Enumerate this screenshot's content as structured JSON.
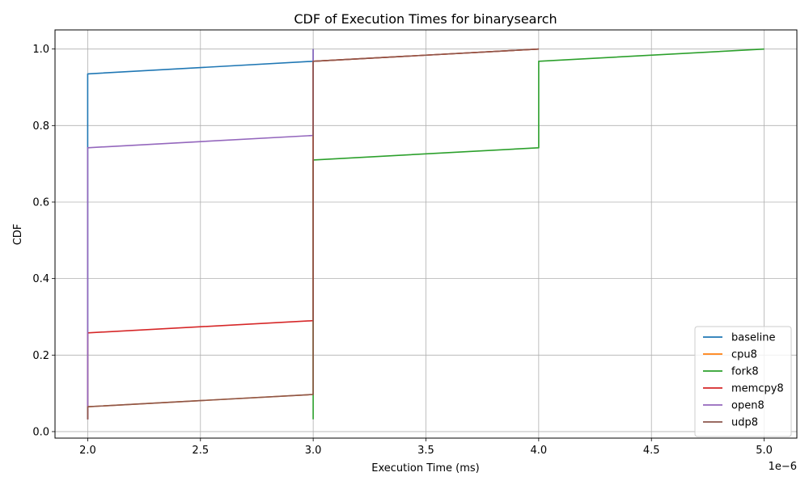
{
  "chart_data": {
    "type": "line",
    "title": "CDF of Execution Times for binarysearch",
    "xlabel": "Execution Time (ms)",
    "ylabel": "CDF",
    "x_offset_label": "1e−6",
    "xlim": [
      1.855,
      5.145
    ],
    "ylim": [
      -0.017,
      1.05
    ],
    "x_ticks": [
      2.0,
      2.5,
      3.0,
      3.5,
      4.0,
      4.5,
      5.0
    ],
    "x_tick_labels": [
      "2.0",
      "2.5",
      "3.0",
      "3.5",
      "4.0",
      "4.5",
      "5.0"
    ],
    "y_ticks": [
      0.0,
      0.2,
      0.4,
      0.6,
      0.8,
      1.0
    ],
    "y_tick_labels": [
      "0.0",
      "0.2",
      "0.4",
      "0.6",
      "0.8",
      "1.0"
    ],
    "grid": true,
    "legend_position": "bottom-right",
    "series": [
      {
        "name": "baseline",
        "color": "#1f77b4",
        "points": [
          [
            2,
            0.032
          ],
          [
            2,
            0.935
          ],
          [
            3,
            0.968
          ],
          [
            3,
            1.0
          ]
        ]
      },
      {
        "name": "cpu8",
        "color": "#ff7f0e",
        "points": [
          [
            2,
            0.032
          ],
          [
            2,
            0.065
          ],
          [
            3,
            0.097
          ],
          [
            3,
            0.968
          ],
          [
            4,
            1.0
          ]
        ]
      },
      {
        "name": "fork8",
        "color": "#2ca02c",
        "points": [
          [
            3,
            0.032
          ],
          [
            3,
            0.71
          ],
          [
            4,
            0.742
          ],
          [
            4,
            0.968
          ],
          [
            5,
            1.0
          ]
        ]
      },
      {
        "name": "memcpy8",
        "color": "#d62728",
        "points": [
          [
            2,
            0.032
          ],
          [
            2,
            0.258
          ],
          [
            3,
            0.29
          ],
          [
            3,
            0.968
          ],
          [
            4,
            1.0
          ]
        ]
      },
      {
        "name": "open8",
        "color": "#9467bd",
        "points": [
          [
            2,
            0.032
          ],
          [
            2,
            0.742
          ],
          [
            3,
            0.774
          ],
          [
            3,
            1.0
          ]
        ]
      },
      {
        "name": "udp8",
        "color": "#8c564b",
        "points": [
          [
            2,
            0.032
          ],
          [
            2,
            0.065
          ],
          [
            3,
            0.097
          ],
          [
            3,
            0.968
          ],
          [
            4,
            1.0
          ]
        ]
      }
    ]
  }
}
